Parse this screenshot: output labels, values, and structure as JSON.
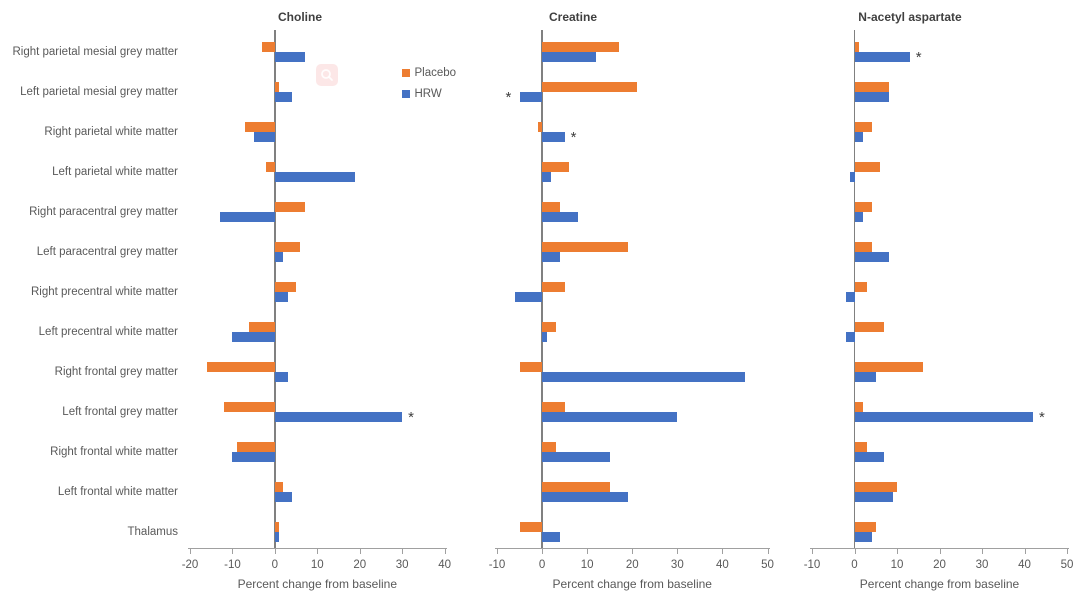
{
  "figure_title": "",
  "ui": {
    "magnifier_overlay_color": "#fce7e7"
  },
  "chart_data": {
    "type": "bar",
    "orientation": "horizontal",
    "grid": false,
    "legend_position": "upper-right-of-first-panel",
    "categories": [
      "Right parietal mesial grey matter",
      "Left parietal mesial grey matter",
      "Right parietal white matter",
      "Left parietal white matter",
      "Right paracentral grey matter",
      "Left paracentral grey matter",
      "Right precentral white matter",
      "Left precentral white matter",
      "Right frontal grey matter",
      "Left frontal grey matter",
      "Right frontal white matter",
      "Left frontal white matter",
      "Thalamus"
    ],
    "xlabel": "Percent change from baseline",
    "legend": [
      "Placebo",
      "HRW"
    ],
    "colors": {
      "Placebo": "#ED7D31",
      "HRW": "#4472C4"
    },
    "significance_marker": "*",
    "panels": [
      {
        "title": "Choline",
        "xlim": [
          -20,
          40
        ],
        "ticks": [
          -20,
          -10,
          0,
          10,
          20,
          30,
          40
        ],
        "series": [
          {
            "name": "Placebo",
            "values": [
              -3,
              1,
              -7,
              -2,
              7,
              6,
              5,
              -6,
              -16,
              -12,
              -9,
              2,
              1
            ]
          },
          {
            "name": "HRW",
            "values": [
              7,
              4,
              -5,
              19,
              -13,
              2,
              3,
              -10,
              3,
              30,
              -10,
              4,
              1
            ]
          }
        ],
        "significant": [
          {
            "series": "HRW",
            "category": "Left frontal grey matter"
          }
        ]
      },
      {
        "title": "Creatine",
        "xlim": [
          -10,
          50
        ],
        "ticks": [
          -10,
          0,
          10,
          20,
          30,
          40,
          50
        ],
        "series": [
          {
            "name": "Placebo",
            "values": [
              17,
              21,
              -1,
              6,
              4,
              19,
              5,
              3,
              -5,
              5,
              3,
              15,
              -5
            ]
          },
          {
            "name": "HRW",
            "values": [
              12,
              -5,
              5,
              2,
              8,
              4,
              -6,
              1,
              45,
              30,
              15,
              19,
              4
            ]
          }
        ],
        "significant": [
          {
            "series": "HRW",
            "category": "Left parietal mesial grey matter"
          },
          {
            "series": "HRW",
            "category": "Right parietal white matter"
          }
        ]
      },
      {
        "title": "N-acetyl aspartate",
        "xlim": [
          -10,
          50
        ],
        "ticks": [
          -10,
          0,
          10,
          20,
          30,
          40,
          50
        ],
        "series": [
          {
            "name": "Placebo",
            "values": [
              1,
              8,
              4,
              6,
              4,
              4,
              3,
              7,
              16,
              2,
              3,
              10,
              5
            ]
          },
          {
            "name": "HRW",
            "values": [
              13,
              8,
              2,
              -1,
              2,
              8,
              -2,
              -2,
              5,
              42,
              7,
              9,
              4
            ]
          }
        ],
        "significant": [
          {
            "series": "HRW",
            "category": "Right parietal mesial grey matter"
          },
          {
            "series": "HRW",
            "category": "Left frontal grey matter"
          }
        ]
      }
    ]
  }
}
